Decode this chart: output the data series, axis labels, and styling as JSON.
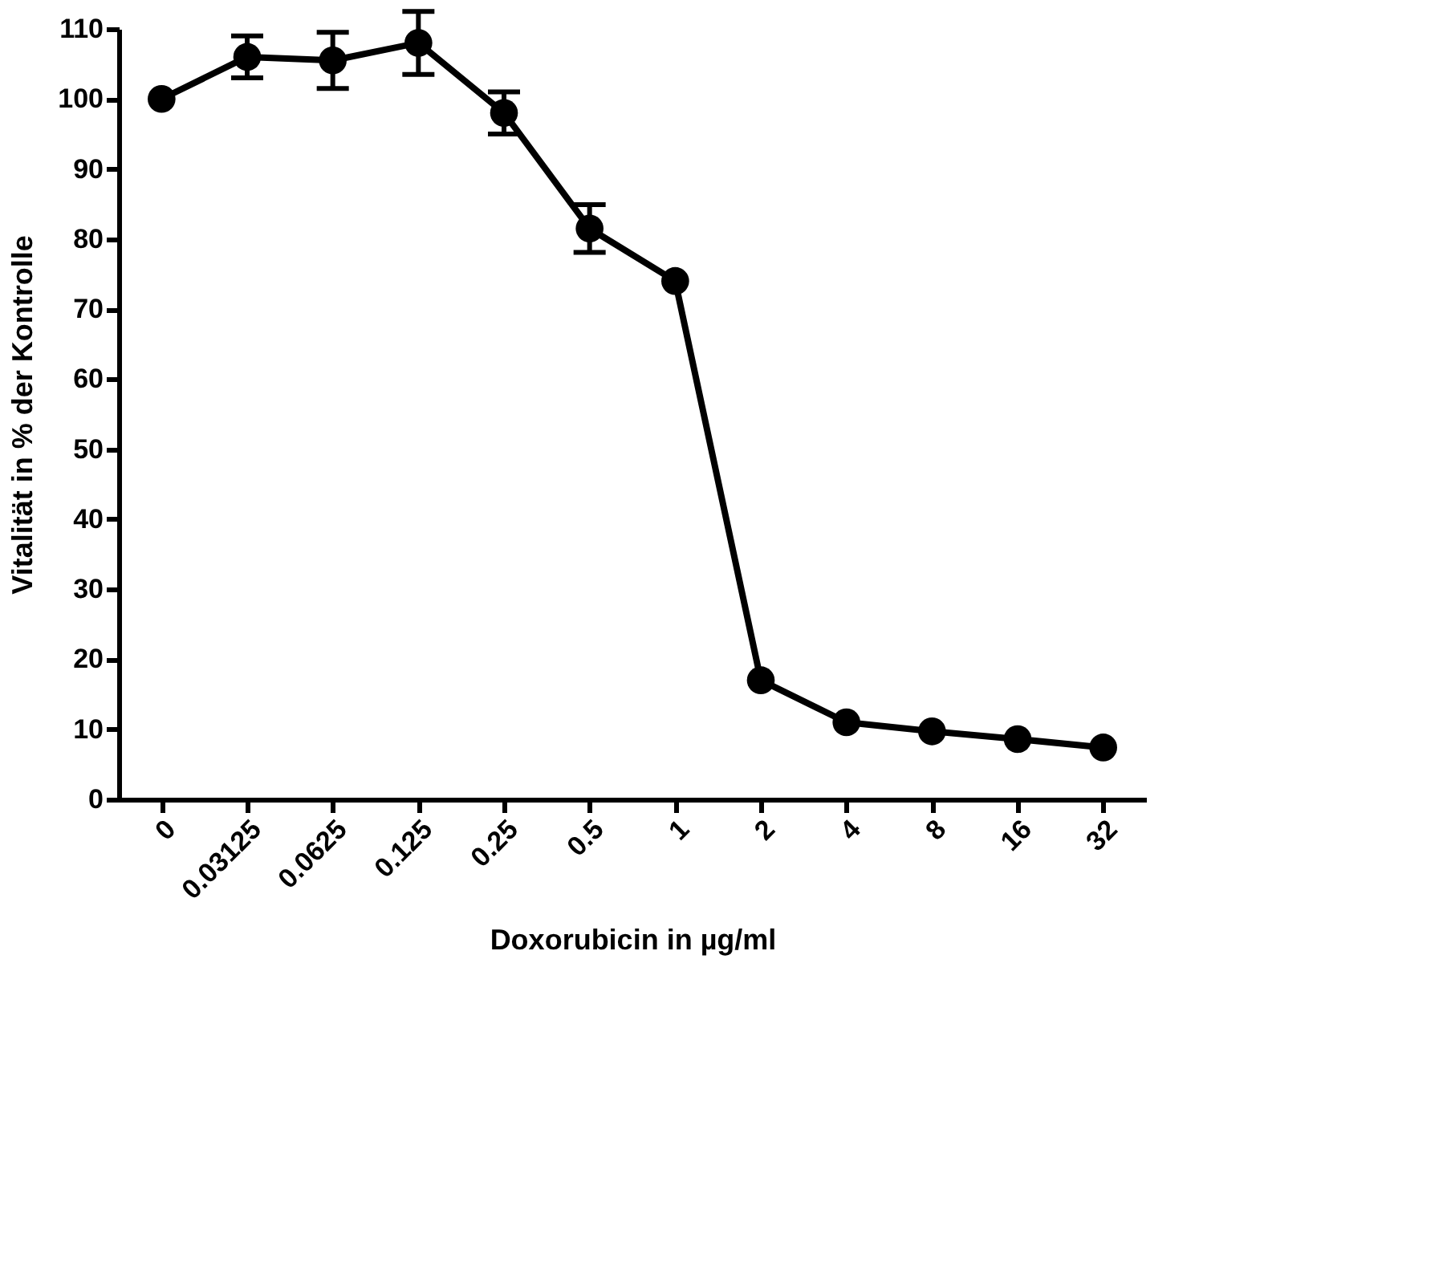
{
  "chart_data": {
    "type": "line",
    "xlabel": "Doxorubicin in µg/ml",
    "ylabel": "Vitalität in % der Kontrolle",
    "categories": [
      "0",
      "0.03125",
      "0.0625",
      "0.125",
      "0.25",
      "0.5",
      "1",
      "2",
      "4",
      "8",
      "16",
      "32"
    ],
    "values": [
      100,
      106,
      105.5,
      108,
      98,
      81.5,
      74,
      17,
      11,
      9.7,
      8.6,
      7.4
    ],
    "errors": [
      null,
      3,
      4,
      4.5,
      3,
      3.4,
      null,
      null,
      null,
      null,
      null,
      null
    ],
    "colors": [
      "#000000",
      "#000000",
      "#000000",
      "#000000",
      "#000000",
      "#000000",
      "#000000",
      "#000000",
      "#000000",
      "#000000",
      "#000000",
      "#000000"
    ],
    "ylim": [
      0,
      110
    ],
    "yticks": [
      0,
      10,
      20,
      30,
      40,
      50,
      60,
      70,
      80,
      90,
      100,
      110
    ],
    "grid": false,
    "marker": "circle",
    "line_style": "solid"
  }
}
